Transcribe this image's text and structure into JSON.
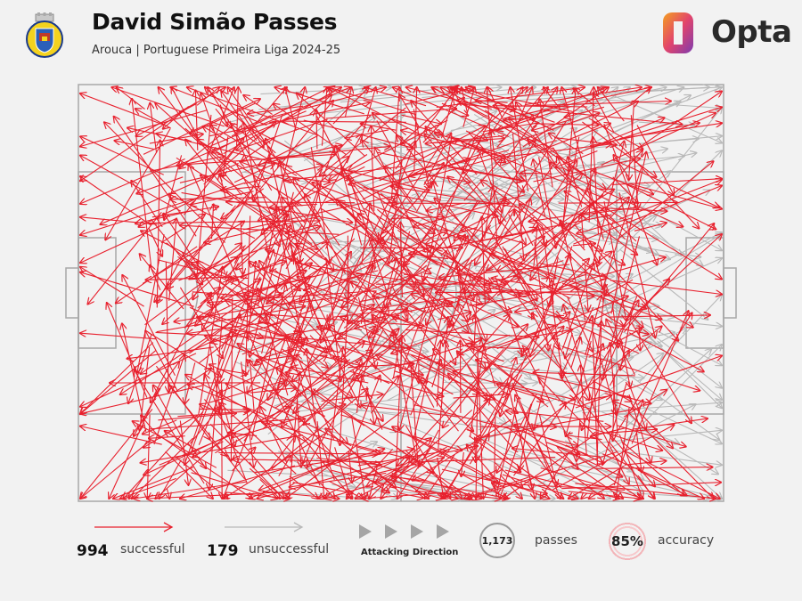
{
  "header": {
    "title": "David Simão Passes",
    "subtitle": "Arouca | Portuguese Primeira Liga 2024-25",
    "brand": "Opta"
  },
  "legend": {
    "successful_count": "994",
    "successful_label": "successful",
    "unsuccessful_count": "179",
    "unsuccessful_label": "unsuccessful",
    "direction_label": "Attacking Direction",
    "passes_count": "1,173",
    "passes_label": "passes",
    "accuracy_value": "85%",
    "accuracy_label": "accuracy"
  },
  "colors": {
    "successful": "#e8212e",
    "unsuccessful": "#b9b9b9",
    "pitch_lines": "#a8a8a8",
    "background": "#f2f2f2",
    "brand_orange": "#f08a24",
    "brand_purple": "#8a3ca8"
  },
  "chart_data": {
    "type": "pass-map",
    "successful": 994,
    "unsuccessful": 179,
    "total": 1173,
    "accuracy_pct": 85,
    "attacking_direction": "left-to-right"
  }
}
